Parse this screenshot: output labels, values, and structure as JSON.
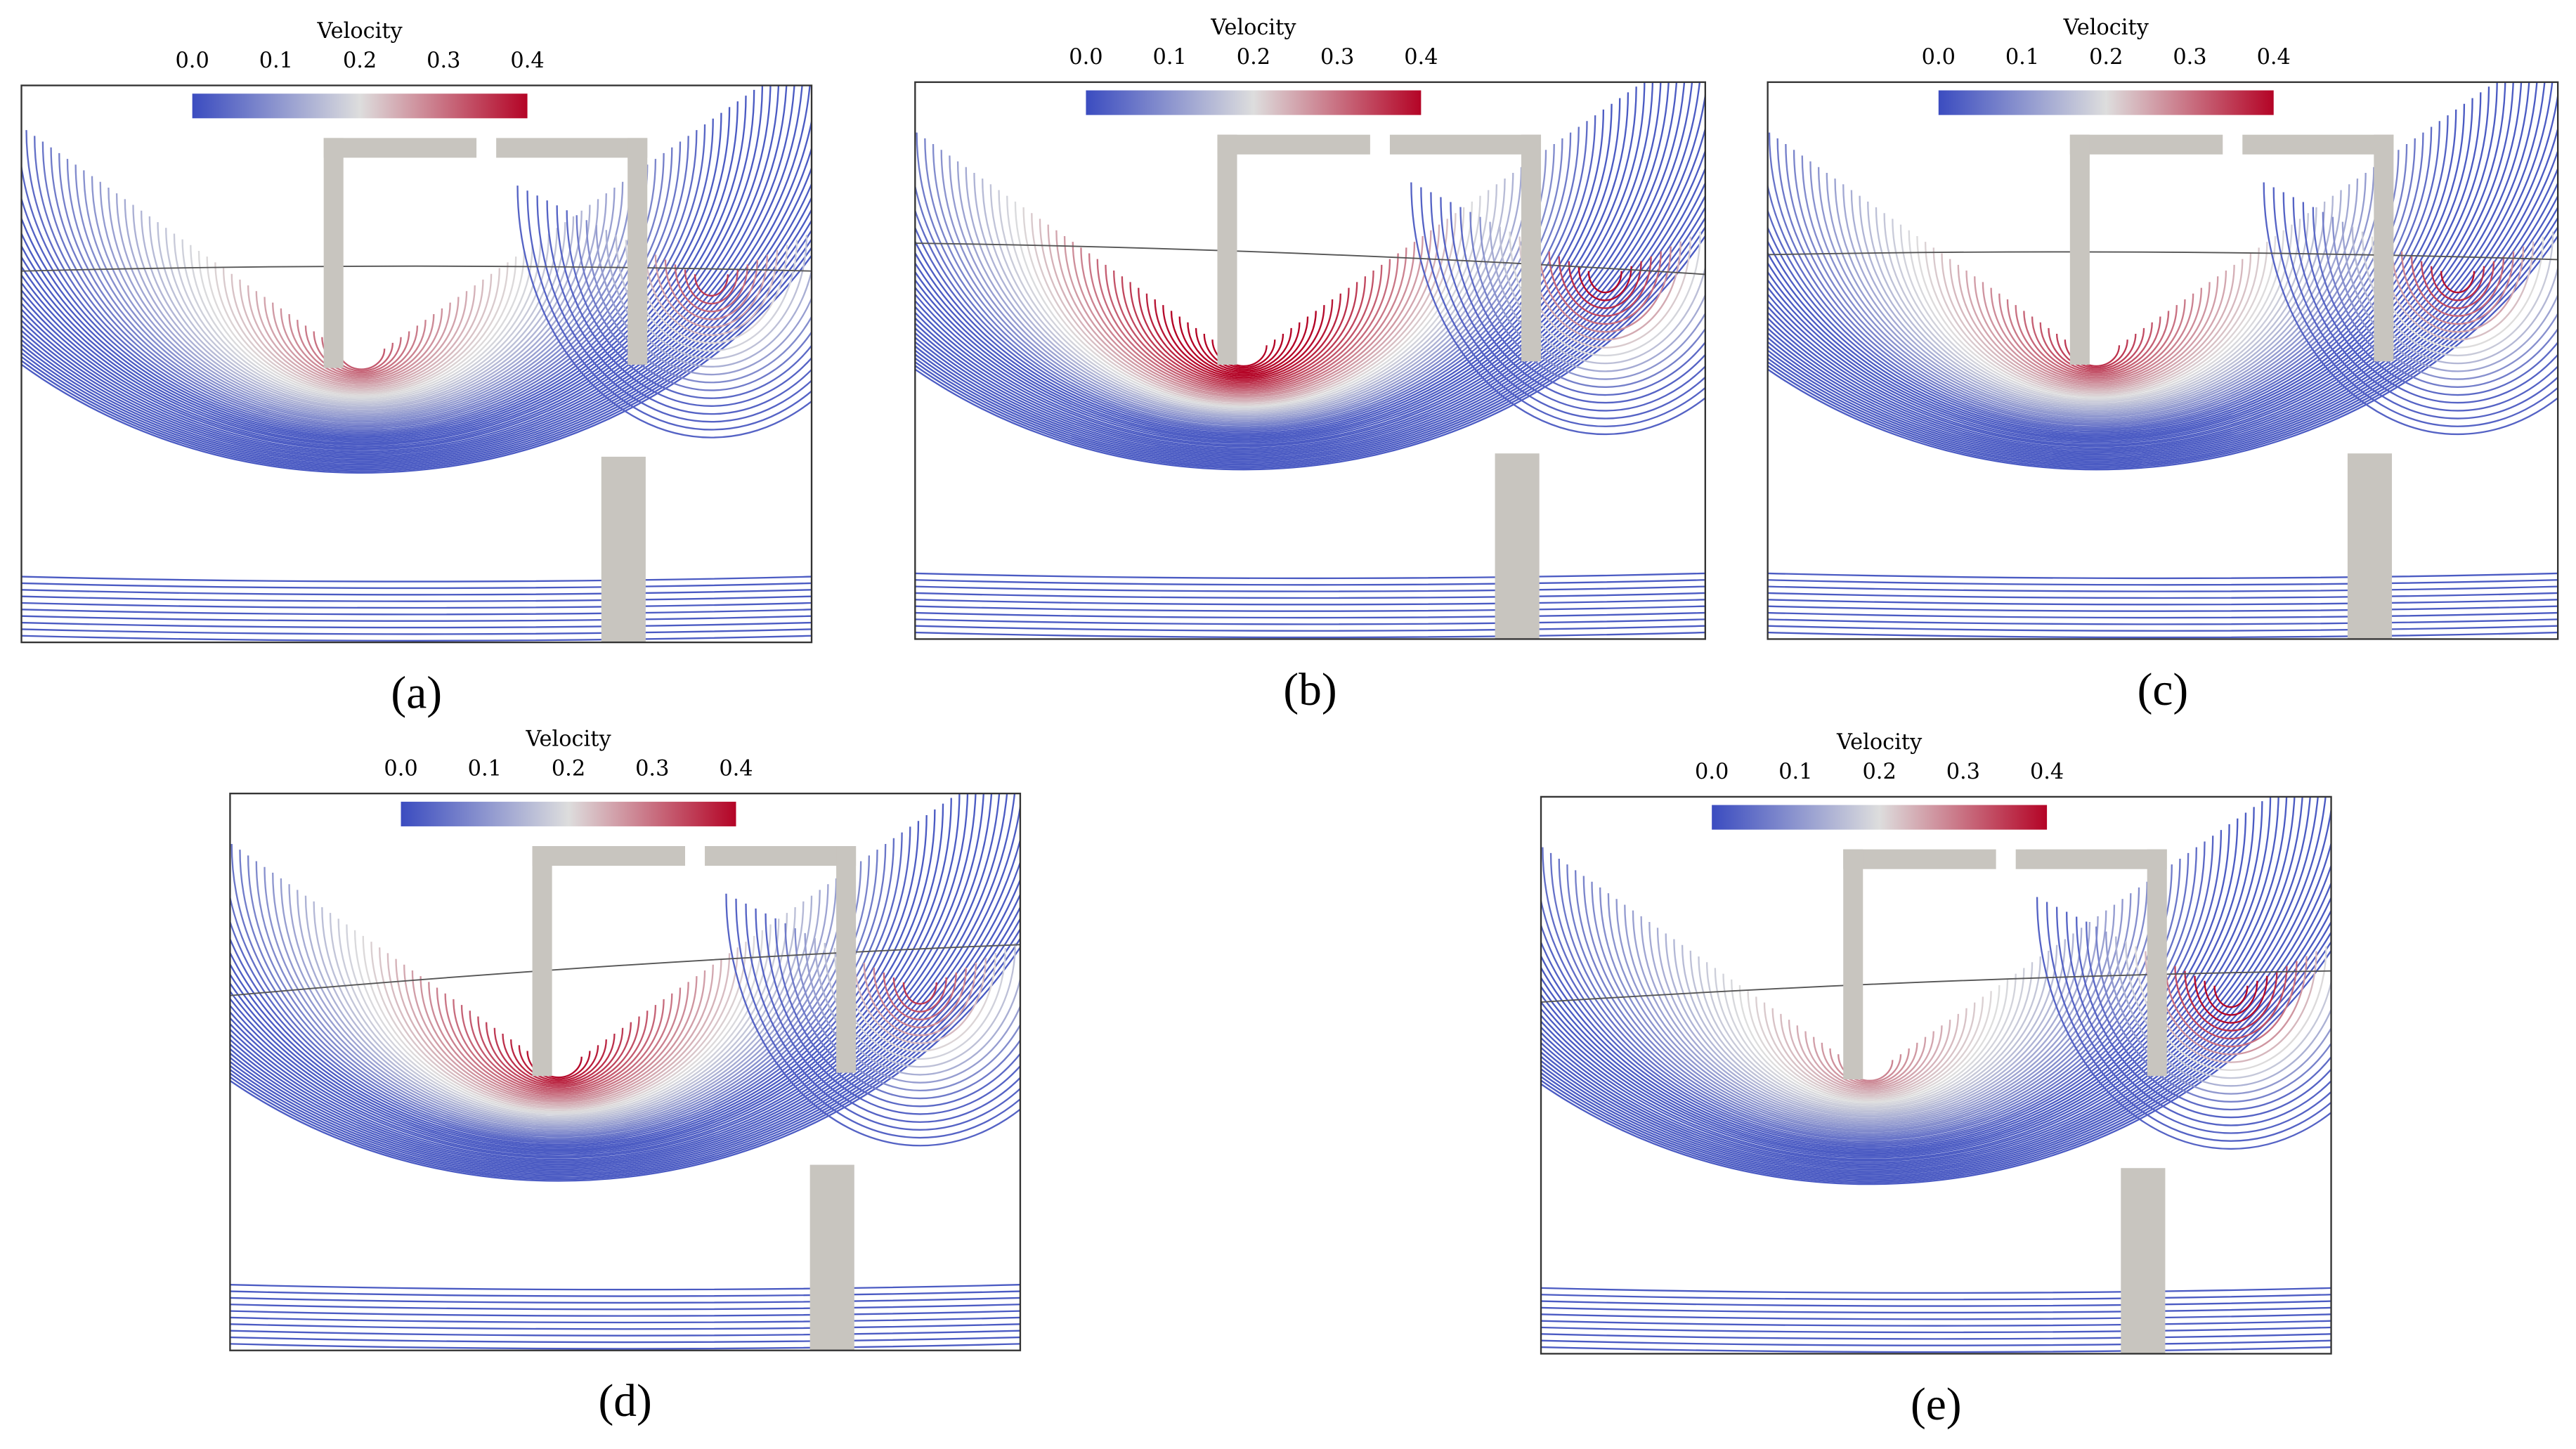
{
  "panels": [
    {
      "label": "(a)",
      "colorbar": {
        "title": "Velocity",
        "range": [
          0,
          0.4
        ],
        "ticks": [
          {
            "value": 0,
            "label": "0.0"
          },
          0.1,
          0.2,
          0.3,
          0.4
        ]
      }
    },
    {
      "label": "(b)",
      "colorbar": {
        "title": "Velocity",
        "range": [
          0,
          0.4
        ],
        "ticks": [
          {
            "value": 0,
            "label": "0.0"
          },
          0.1,
          0.2,
          0.3,
          0.4
        ]
      }
    },
    {
      "label": "(c)",
      "colorbar": {
        "title": "Velocity",
        "range": [
          0,
          0.4
        ],
        "ticks": [
          {
            "value": 0,
            "label": "0.0"
          },
          0.1,
          0.2,
          0.3,
          0.4
        ]
      }
    },
    {
      "label": "(d)",
      "colorbar": {
        "title": "Velocity",
        "range": [
          0,
          0.4
        ],
        "ticks": [
          {
            "value": 0,
            "label": "0.0"
          },
          0.1,
          0.2,
          0.3,
          0.4
        ]
      }
    },
    {
      "label": "(e)",
      "colorbar": {
        "title": "Velocity",
        "range": [
          0,
          0.4
        ],
        "ticks": [
          {
            "value": 0,
            "label": "0.0"
          },
          0.1,
          0.2,
          0.3,
          0.4
        ]
      }
    }
  ]
}
